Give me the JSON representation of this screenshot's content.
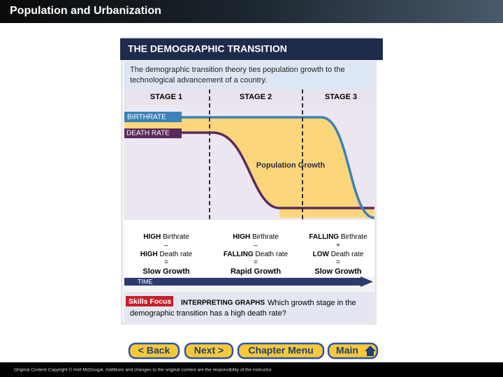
{
  "header": {
    "title": "Population and Urbanization"
  },
  "figure": {
    "title": "THE DEMOGRAPHIC TRANSITION",
    "description": [
      "The demographic transition theory ties population growth to the",
      "technological advancement of a country."
    ],
    "stages": [
      "STAGE 1",
      "STAGE 2",
      "STAGE 3"
    ],
    "birthrate_label": "BIRTHRATE",
    "deathrate_label": "DEATH RATE",
    "growth_label": "Population Growth",
    "summaries": [
      {
        "birth_level": "HIGH",
        "birth": "Birthrate",
        "op": "–",
        "death_level": "HIGH",
        "death": "Death rate",
        "eq": "=",
        "result": "Slow Growth"
      },
      {
        "birth_level": "HIGH",
        "birth": "Birthrate",
        "op": "–",
        "death_level": "FALLING",
        "death": "Death rate",
        "eq": "=",
        "result": "Rapid Growth"
      },
      {
        "birth_level": "FALLING",
        "birth": "Birthrate",
        "op": "+",
        "death_level": "LOW",
        "death": "Death rate",
        "eq": "=",
        "result": "Slow Growth"
      }
    ],
    "time_label": "TIME",
    "skills": {
      "badge": "Skills Focus",
      "heading": "INTERPRETING GRAPHS",
      "question": [
        "Which growth stage in the",
        "demographic transition has a high death rate?"
      ]
    }
  },
  "nav": [
    "< Back",
    "Next >",
    "Chapter Menu",
    "Main"
  ],
  "footer": "Original Content Copyright © Holt McDougal. Additions and changes to the original content are the responsibility of the instructor."
}
